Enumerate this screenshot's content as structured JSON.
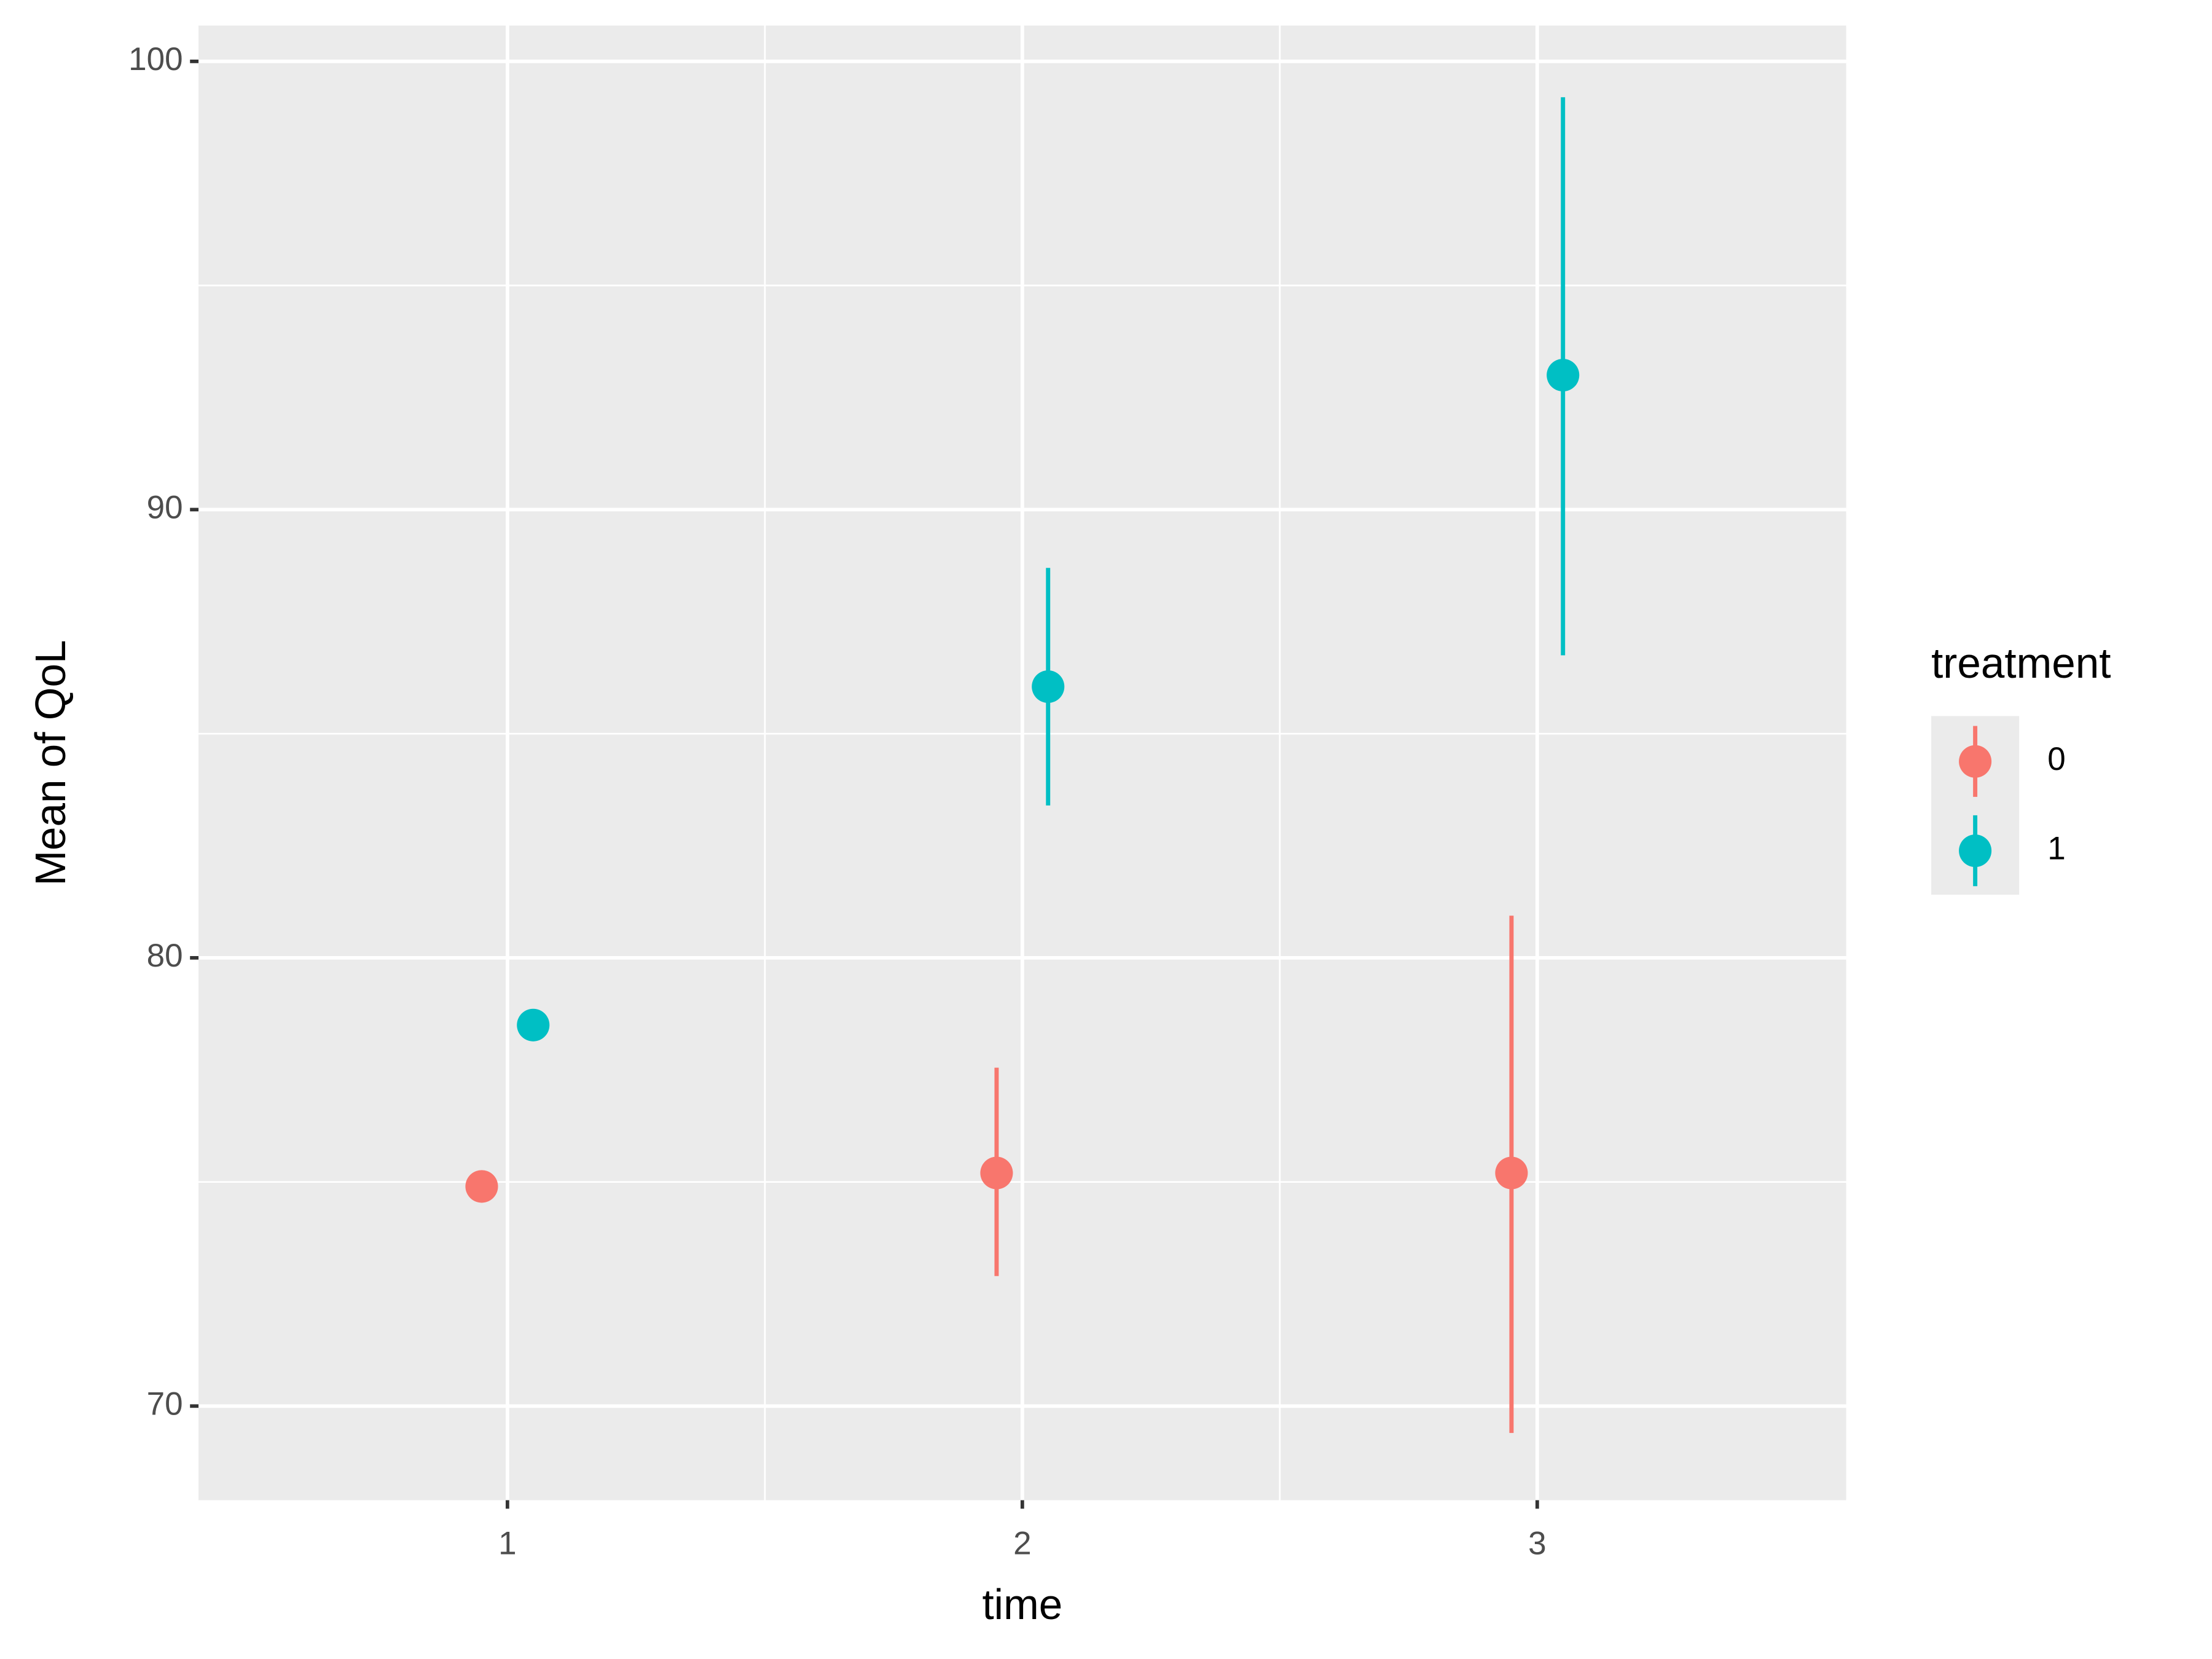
{
  "chart_data": {
    "type": "errorpoint",
    "x_label": "time",
    "y_label": "Mean of QoL",
    "xlim": [
      0.4,
      3.6
    ],
    "ylim": [
      67.9,
      100.8
    ],
    "xticks": [
      1,
      2,
      3
    ],
    "yticks": [
      70,
      80,
      90,
      100
    ],
    "x_minor_ticks": [
      1.5,
      2.5
    ],
    "y_minor_ticks": [
      75,
      85,
      95
    ],
    "grid": true,
    "legend_position": "right",
    "legend_title": "treatment",
    "series": [
      {
        "name": "0",
        "color": "#F8766D",
        "x": [
          0.95,
          1.95,
          2.95
        ],
        "values": [
          74.9,
          75.2,
          75.2
        ],
        "ymin": [
          null,
          72.9,
          69.4
        ],
        "ymax": [
          null,
          77.55,
          80.94
        ]
      },
      {
        "name": "1",
        "color": "#00BFC4",
        "x": [
          1.05,
          2.05,
          3.05
        ],
        "values": [
          78.5,
          86.05,
          93.0
        ],
        "ymin": [
          null,
          83.4,
          86.75
        ],
        "ymax": [
          null,
          88.7,
          99.2
        ]
      }
    ]
  }
}
